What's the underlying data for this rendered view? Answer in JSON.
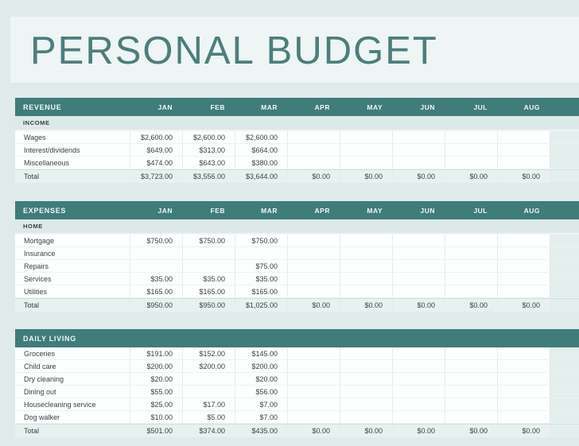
{
  "page": {
    "title": "PERSONAL BUDGET"
  },
  "months": [
    "JAN",
    "FEB",
    "MAR",
    "APR",
    "MAY",
    "JUN",
    "JUL",
    "AUG"
  ],
  "tables": [
    {
      "id": "revenue",
      "header": "REVENUE",
      "show_months": true,
      "sections": [
        {
          "label": "INCOME",
          "rows": [
            {
              "label": "Wages",
              "values": [
                "$2,600.00",
                "$2,600.00",
                "$2,600.00",
                "",
                "",
                "",
                "",
                ""
              ]
            },
            {
              "label": "Interest/dividends",
              "values": [
                "$649.00",
                "$313.00",
                "$664.00",
                "",
                "",
                "",
                "",
                ""
              ]
            },
            {
              "label": "Miscellaneous",
              "values": [
                "$474.00",
                "$643.00",
                "$380.00",
                "",
                "",
                "",
                "",
                ""
              ]
            }
          ],
          "total": {
            "label": "Total",
            "values": [
              "$3,723.00",
              "$3,556.00",
              "$3,644.00",
              "$0.00",
              "$0.00",
              "$0.00",
              "$0.00",
              "$0.00"
            ]
          }
        }
      ]
    },
    {
      "id": "expenses",
      "header": "EXPENSES",
      "show_months": true,
      "sections": [
        {
          "label": "HOME",
          "rows": [
            {
              "label": "Mortgage",
              "values": [
                "$750.00",
                "$750.00",
                "$750.00",
                "",
                "",
                "",
                "",
                ""
              ]
            },
            {
              "label": "Insurance",
              "values": [
                "",
                "",
                "",
                "",
                "",
                "",
                "",
                ""
              ]
            },
            {
              "label": "Repairs",
              "values": [
                "",
                "",
                "$75.00",
                "",
                "",
                "",
                "",
                ""
              ]
            },
            {
              "label": "Services",
              "values": [
                "$35.00",
                "$35.00",
                "$35.00",
                "",
                "",
                "",
                "",
                ""
              ]
            },
            {
              "label": "Utilities",
              "values": [
                "$165.00",
                "$165.00",
                "$165.00",
                "",
                "",
                "",
                "",
                ""
              ]
            }
          ],
          "total": {
            "label": "Total",
            "values": [
              "$950.00",
              "$950.00",
              "$1,025.00",
              "$0.00",
              "$0.00",
              "$0.00",
              "$0.00",
              "$0.00"
            ]
          }
        }
      ]
    },
    {
      "id": "daily-living",
      "header": "DAILY LIVING",
      "show_months": false,
      "sections": [
        {
          "label": null,
          "rows": [
            {
              "label": "Groceries",
              "values": [
                "$191.00",
                "$152.00",
                "$145.00",
                "",
                "",
                "",
                "",
                ""
              ]
            },
            {
              "label": "Child care",
              "values": [
                "$200.00",
                "$200.00",
                "$200.00",
                "",
                "",
                "",
                "",
                ""
              ]
            },
            {
              "label": "Dry cleaning",
              "values": [
                "$20.00",
                "",
                "$20.00",
                "",
                "",
                "",
                "",
                ""
              ]
            },
            {
              "label": "Dining out",
              "values": [
                "$55.00",
                "",
                "$56.00",
                "",
                "",
                "",
                "",
                ""
              ]
            },
            {
              "label": "Housecleaning service",
              "values": [
                "$25.00",
                "$17.00",
                "$7.00",
                "",
                "",
                "",
                "",
                ""
              ]
            },
            {
              "label": "Dog walker",
              "values": [
                "$10.00",
                "$5.00",
                "$7.00",
                "",
                "",
                "",
                "",
                ""
              ]
            }
          ],
          "total": {
            "label": "Total",
            "values": [
              "$501.00",
              "$374.00",
              "$435.00",
              "$0.00",
              "$0.00",
              "$0.00",
              "$0.00",
              "$0.00"
            ]
          }
        }
      ]
    }
  ],
  "colors": {
    "header_bar": "#3F7C7A",
    "header_text": "#F1F7F7",
    "section_band": "#DCE9E8",
    "section_text": "#35403F",
    "row_bg": "#FDFEFE",
    "total_row_bg": "#E8F1F0",
    "partial_col_bg": "#E3EEED",
    "page_bg": "#E1EAEA",
    "panel_bg": "#EEF5F4",
    "title_text": "#4C7E7C",
    "value_text": "#3C4242"
  }
}
